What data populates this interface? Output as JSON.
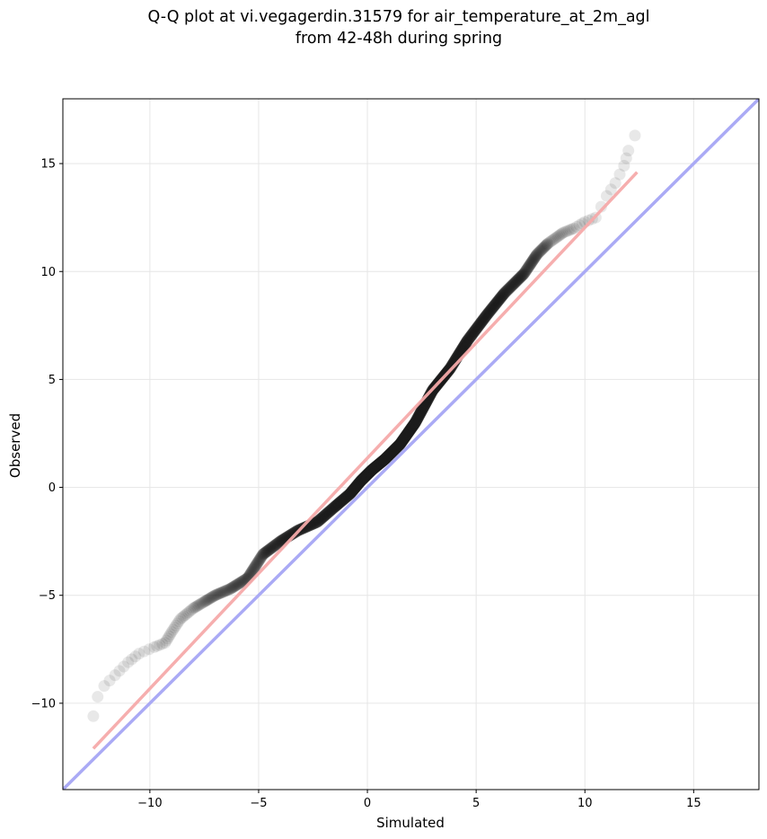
{
  "chart_data": {
    "type": "scatter",
    "title_lines": [
      "Q-Q plot at vi.vegagerdin.31579 for air_temperature_at_2m_agl",
      "from 42-48h during spring"
    ],
    "xlabel": "Simulated",
    "ylabel": "Observed",
    "xlim": [
      -14,
      18
    ],
    "ylim": [
      -14,
      18
    ],
    "xticks": [
      -10,
      -5,
      0,
      5,
      10,
      15
    ],
    "yticks": [
      -10,
      -5,
      0,
      5,
      10,
      15
    ],
    "xtick_labels": [
      "−10",
      "−5",
      "0",
      "5",
      "10",
      "15"
    ],
    "ytick_labels": [
      "−10",
      "−5",
      "0",
      "5",
      "10",
      "15"
    ],
    "grid": true,
    "identity_line": {
      "color": "#aaaaf5",
      "from": [
        -14,
        -14
      ],
      "to": [
        18,
        18
      ]
    },
    "fit_line": {
      "color": "#f5aaaa",
      "from": [
        -12.6,
        -12.1
      ],
      "to": [
        12.4,
        14.6
      ]
    },
    "point_color": "#222222",
    "quantile_knots": {
      "simulated": [
        -12.6,
        -12.4,
        -12.1,
        -11.6,
        -11.0,
        -10.5,
        -9.8,
        -9.3,
        -9.0,
        -8.6,
        -8.0,
        -7.5,
        -7.0,
        -6.3,
        -5.5,
        -4.8,
        -4.0,
        -3.2,
        -2.3,
        -1.5,
        -0.8,
        -0.3,
        0.2,
        0.8,
        1.5,
        2.2,
        3.0,
        3.8,
        4.6,
        5.5,
        6.3,
        7.2,
        7.8,
        8.3,
        9.0,
        9.5,
        10.0,
        10.5,
        11.0,
        11.4,
        11.8,
        12.0,
        12.3
      ],
      "observed": [
        -10.6,
        -9.7,
        -9.2,
        -8.7,
        -8.1,
        -7.7,
        -7.4,
        -7.2,
        -6.7,
        -6.1,
        -5.6,
        -5.3,
        -5.0,
        -4.7,
        -4.2,
        -3.1,
        -2.5,
        -2.0,
        -1.6,
        -0.9,
        -0.3,
        0.3,
        0.8,
        1.3,
        2.0,
        3.0,
        4.5,
        5.5,
        6.8,
        8.0,
        9.0,
        9.9,
        10.8,
        11.3,
        11.8,
        12.0,
        12.3,
        12.5,
        13.5,
        14.1,
        14.9,
        15.6,
        16.3
      ],
      "count": [
        1,
        1,
        2,
        3,
        3,
        3,
        4,
        5,
        6,
        8,
        10,
        14,
        20,
        30,
        40,
        50,
        60,
        70,
        80,
        90,
        100,
        110,
        120,
        140,
        160,
        160,
        150,
        130,
        110,
        90,
        70,
        40,
        20,
        12,
        6,
        4,
        3,
        2,
        2,
        2,
        2,
        1
      ]
    }
  }
}
